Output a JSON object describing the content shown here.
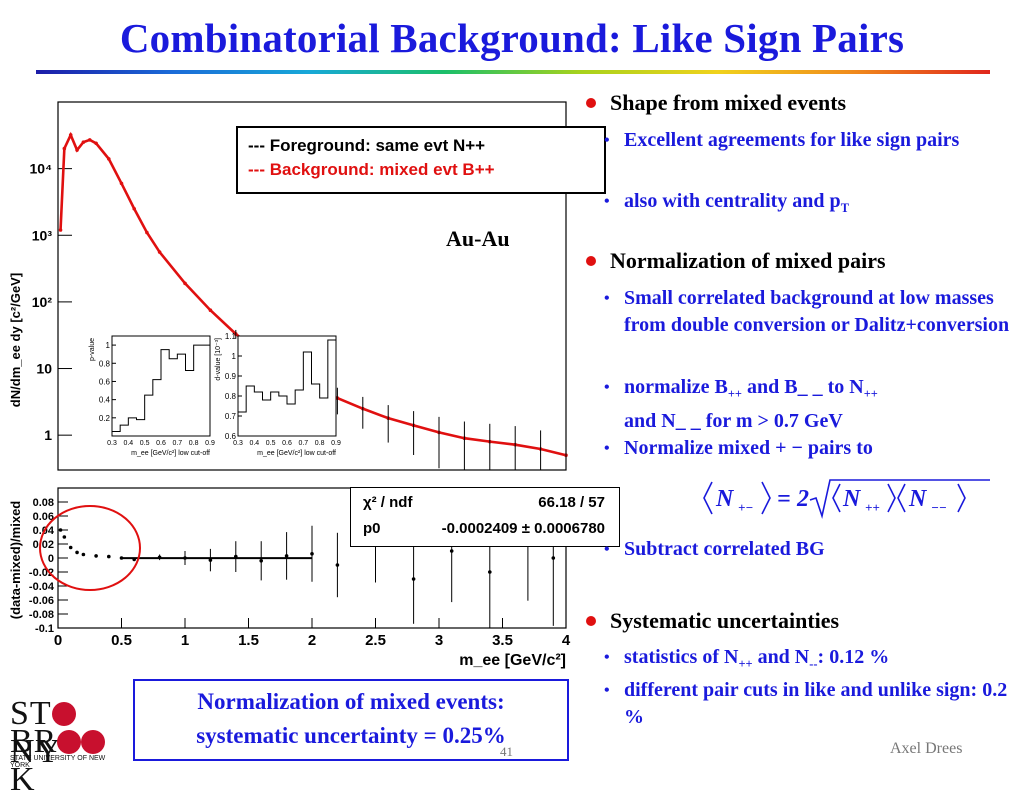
{
  "slide": {
    "title": "Combinatorial Background: Like Sign Pairs",
    "author": "Axel Drees",
    "page_number": "41",
    "logo": {
      "line1": "STONY",
      "line2": "BROOK",
      "sub": "STATE UNIVERSITY OF NEW YORK"
    }
  },
  "plot": {
    "legend_foreground": "--- Foreground: same evt  N++",
    "legend_background": "--- Background: mixed evt B++",
    "system_label": "Au-Au",
    "fit_label_chi": "χ² / ndf",
    "fit_value_chi": "66.18 / 57",
    "fit_label_p0": "p0",
    "fit_value_p0": "-0.0002409 ± 0.0006780",
    "inset1_ylabel": "p-value",
    "inset2_ylabel": "d-value [10⁻³]",
    "inset_xlabel": "m_ee [GeV/c²] low cut-off"
  },
  "note": {
    "line1": "Normalization of mixed events:",
    "line2": "systematic uncertainty = 0.25%"
  },
  "bullets": {
    "shape": "Shape from mixed events",
    "shape_1": "Excellent agreements for like sign pairs",
    "shape_2": "also with centrality and p",
    "shape_2_sub": "T",
    "norm": "Normalization of mixed pairs",
    "norm_1": "Small correlated background at low masses from double conversion or Dalitz+conversion",
    "norm_2a": "normalize B",
    "norm_2b": "and B_ _ to N",
    "norm_2c": "and N_ _ for m > 0.7 GeV",
    "pp": "++",
    "norm_3": "Normalize mixed + − pairs to",
    "norm_4": "Subtract correlated BG",
    "syst": "Systematic uncertainties",
    "syst_1a": "statistics of N",
    "syst_1b": "and N",
    "syst_1c": ": 0.12 %",
    "mm": "--",
    "syst_2": "different pair cuts in like and unlike sign: 0.2 %"
  },
  "chart_data": [
    {
      "type": "line",
      "title": "",
      "xlabel": "m_ee [GeV/c²]",
      "ylabel": "dN/dm_ee dy [c²/GeV]",
      "yscale": "log",
      "xlim": [
        0,
        4
      ],
      "ylim": [
        0.3,
        100000
      ],
      "x_ticks": [
        "0",
        "0.5",
        "1",
        "1.5",
        "2",
        "2.5",
        "3",
        "3.5",
        "4"
      ],
      "y_ticks": [
        "1",
        "10",
        "10²",
        "10³",
        "10⁴"
      ],
      "series": [
        {
          "name": "Foreground: same evt N++",
          "color": "#000000",
          "x": [
            0.02,
            0.05,
            0.1,
            0.15,
            0.2,
            0.25,
            0.3,
            0.4,
            0.5,
            0.6,
            0.7,
            0.8,
            1.0,
            1.2,
            1.4,
            1.6,
            1.8,
            2.0,
            2.2,
            2.4,
            2.6,
            2.8,
            3.0,
            3.2,
            3.4,
            3.6,
            3.8,
            4.0
          ],
          "y": [
            1200,
            20000,
            32000,
            19000,
            25000,
            27000,
            24000,
            14000,
            6000,
            2500,
            1100,
            560,
            190,
            75,
            33,
            17,
            9,
            5.5,
            3.6,
            2.5,
            1.8,
            1.4,
            1.1,
            0.9,
            0.8,
            0.72,
            0.62,
            0.5
          ]
        },
        {
          "name": "Background: mixed evt B++",
          "color": "#e01010",
          "x": [
            0.02,
            0.05,
            0.1,
            0.15,
            0.2,
            0.25,
            0.3,
            0.4,
            0.5,
            0.6,
            0.7,
            0.8,
            1.0,
            1.2,
            1.4,
            1.6,
            1.8,
            2.0,
            2.2,
            2.4,
            2.6,
            2.8,
            3.0,
            3.2,
            3.4,
            3.6,
            3.8,
            4.0
          ],
          "y": [
            1200,
            20000,
            32000,
            19000,
            25000,
            27000,
            24000,
            14000,
            6000,
            2500,
            1100,
            560,
            190,
            75,
            33,
            17,
            9,
            5.5,
            3.6,
            2.5,
            1.8,
            1.4,
            1.1,
            0.9,
            0.8,
            0.72,
            0.62,
            0.5
          ]
        }
      ]
    },
    {
      "type": "scatter",
      "title": "",
      "xlabel": "m_ee [GeV/c²]",
      "ylabel": "(data-mixed)/mixed",
      "xlim": [
        0,
        4
      ],
      "ylim": [
        -0.1,
        0.1
      ],
      "y_ticks": [
        "0.08",
        "0.06",
        "0.04",
        "0.02",
        "0",
        "-0.02",
        "-0.04",
        "-0.06",
        "-0.08",
        "-0.1"
      ],
      "series": [
        {
          "name": "ratio",
          "x": [
            0.02,
            0.05,
            0.1,
            0.15,
            0.2,
            0.3,
            0.4,
            0.5,
            0.6,
            0.8,
            1.0,
            1.2,
            1.4,
            1.6,
            1.8,
            2.0,
            2.2,
            2.5,
            2.8,
            3.1,
            3.4,
            3.7,
            3.9
          ],
          "y": [
            0.04,
            0.03,
            0.015,
            0.008,
            0.005,
            0.003,
            0.002,
            0.0,
            -0.002,
            0.001,
            0.0,
            -0.003,
            0.002,
            -0.004,
            0.003,
            0.006,
            -0.01,
            0.02,
            -0.03,
            0.01,
            -0.02,
            0.03,
            0.0
          ]
        }
      ],
      "fit": {
        "function": "constant",
        "p0": -0.0002409,
        "p0_error": 0.000678,
        "chi2": 66.18,
        "ndf": 57
      }
    },
    {
      "type": "line",
      "xlabel": "m_ee [GeV/c²] low cut-off",
      "ylabel": "p-value",
      "xlim": [
        0.3,
        0.9
      ],
      "ylim": [
        0,
        1.1
      ],
      "x_ticks": [
        "0.3",
        "0.4",
        "0.5",
        "0.6",
        "0.7",
        "0.8",
        "0.9"
      ],
      "y_ticks": [
        "0.2",
        "0.4",
        "0.6",
        "0.8",
        "1"
      ],
      "series": [
        {
          "name": "p-value",
          "x": [
            0.3,
            0.35,
            0.4,
            0.45,
            0.5,
            0.55,
            0.6,
            0.65,
            0.7,
            0.75,
            0.8,
            0.85,
            0.9
          ],
          "y": [
            0.05,
            0.12,
            0.2,
            0.18,
            0.45,
            0.62,
            0.95,
            0.85,
            0.9,
            0.72,
            1.0,
            1.0,
            1.0
          ]
        }
      ]
    },
    {
      "type": "line",
      "xlabel": "m_ee [GeV/c²] low cut-off",
      "ylabel": "d-value [10⁻³]",
      "xlim": [
        0.3,
        0.9
      ],
      "ylim": [
        0.6,
        1.1
      ],
      "x_ticks": [
        "0.3",
        "0.4",
        "0.5",
        "0.6",
        "0.7",
        "0.8",
        "0.9"
      ],
      "y_ticks": [
        "0.6",
        "0.7",
        "0.8",
        "0.9",
        "1",
        "1.1"
      ],
      "series": [
        {
          "name": "d-value",
          "x": [
            0.3,
            0.35,
            0.4,
            0.45,
            0.5,
            0.55,
            0.6,
            0.65,
            0.7,
            0.75,
            0.8,
            0.85,
            0.9
          ],
          "y": [
            0.72,
            0.85,
            0.82,
            0.78,
            0.82,
            0.8,
            0.76,
            0.83,
            1.02,
            0.86,
            0.79,
            1.08,
            1.1
          ]
        }
      ]
    }
  ]
}
